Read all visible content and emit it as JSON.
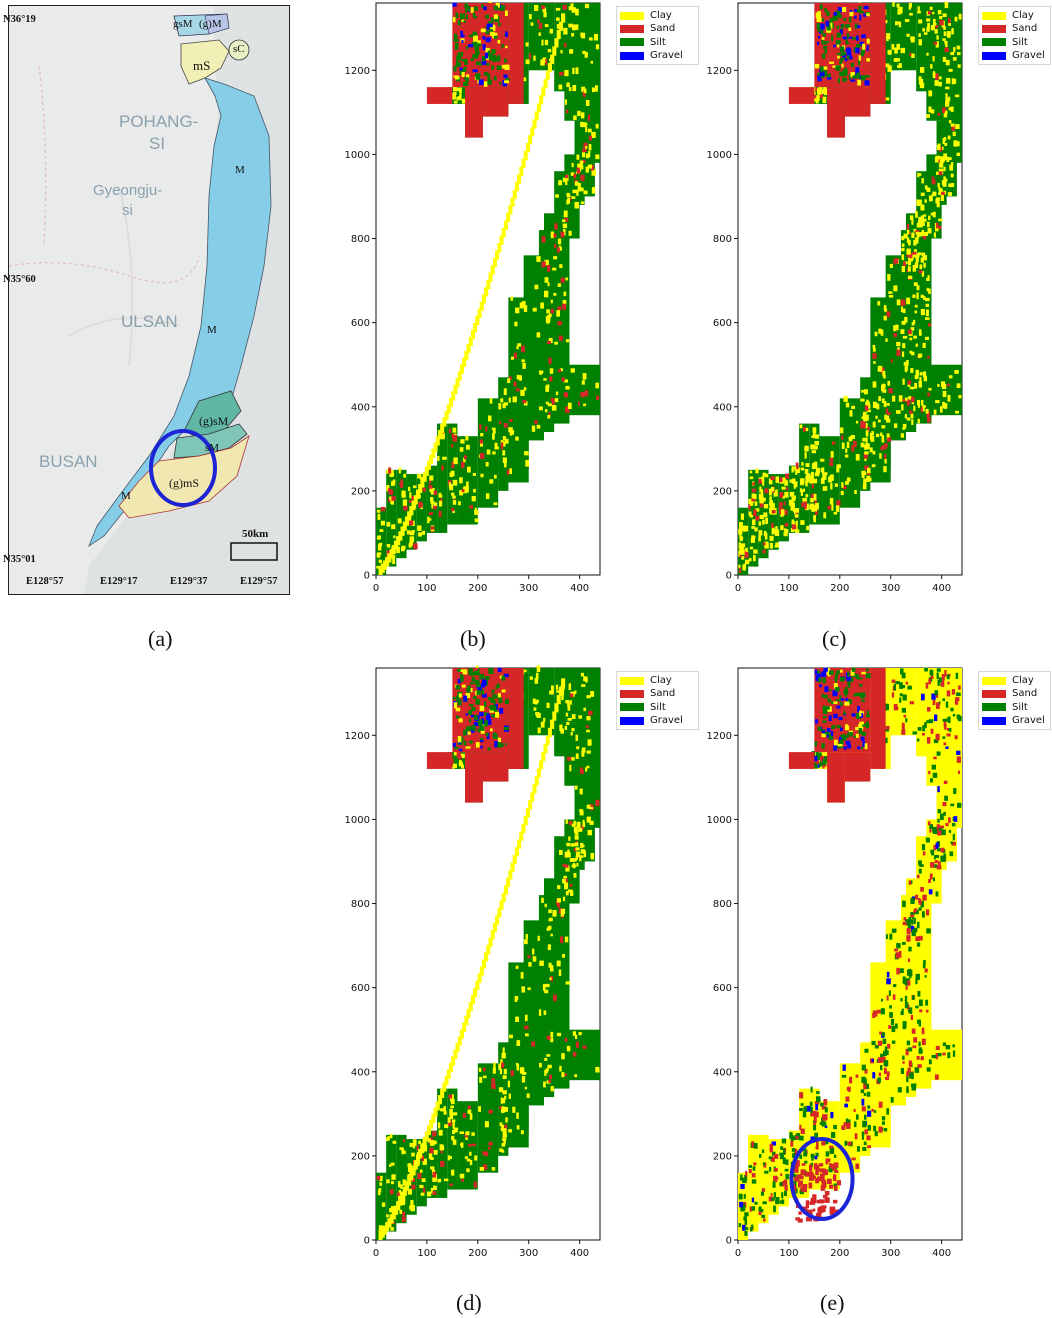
{
  "figure": {
    "captions": [
      "(a)",
      "(b)",
      "(c)",
      "(d)",
      "(e)"
    ]
  },
  "map": {
    "city_labels": [
      "POHANG-",
      "SI",
      "Gyeongju-",
      "si",
      "ULSAN",
      "BUSAN"
    ],
    "sediment_units": [
      "gsM",
      "(g)M",
      "mS",
      "sC",
      "M",
      "M",
      "M",
      "(g)sM",
      "sM",
      "(g)mS"
    ],
    "lat_labels": [
      "N36°19",
      "N35°60",
      "N35°01"
    ],
    "lon_labels": [
      "E128°57",
      "E129°17",
      "E129°37",
      "E129°57"
    ],
    "scale_label": "50km",
    "colors": {
      "sea_mud": "#86cde8",
      "sand": "#f1efb5",
      "gravelly": "#a7d6e5",
      "green_unit": "#5fb7a4",
      "land": "#e9ebea",
      "circle": "#1d24d6"
    }
  },
  "legend": {
    "items": [
      {
        "label": "Clay",
        "color": "#ffff00"
      },
      {
        "label": "Sand",
        "color": "#d62728"
      },
      {
        "label": "Silt",
        "color": "#008000"
      },
      {
        "label": "Gravel",
        "color": "#0000ff"
      }
    ]
  },
  "chart_data": [
    {
      "panel": "(b)",
      "type": "heatmap",
      "xlim": [
        0,
        440
      ],
      "ylim": [
        0,
        1360
      ],
      "xticks": [
        0,
        100,
        200,
        300,
        400
      ],
      "yticks": [
        0,
        200,
        400,
        600,
        800,
        1000,
        1200
      ],
      "series": [
        "Clay",
        "Sand",
        "Silt",
        "Gravel"
      ],
      "dominant_class": "Silt",
      "highlight_circle": false
    },
    {
      "panel": "(c)",
      "type": "heatmap",
      "xlim": [
        0,
        440
      ],
      "ylim": [
        0,
        1360
      ],
      "xticks": [
        0,
        100,
        200,
        300,
        400
      ],
      "yticks": [
        0,
        200,
        400,
        600,
        800,
        1000,
        1200
      ],
      "series": [
        "Clay",
        "Sand",
        "Silt",
        "Gravel"
      ],
      "dominant_class": "Silt",
      "highlight_circle": false
    },
    {
      "panel": "(d)",
      "type": "heatmap",
      "xlim": [
        0,
        440
      ],
      "ylim": [
        0,
        1360
      ],
      "xticks": [
        0,
        100,
        200,
        300,
        400
      ],
      "yticks": [
        0,
        200,
        400,
        600,
        800,
        1000,
        1200
      ],
      "series": [
        "Clay",
        "Sand",
        "Silt",
        "Gravel"
      ],
      "dominant_class": "Silt",
      "highlight_circle": false
    },
    {
      "panel": "(e)",
      "type": "heatmap",
      "xlim": [
        0,
        440
      ],
      "ylim": [
        0,
        1360
      ],
      "xticks": [
        0,
        100,
        200,
        300,
        400
      ],
      "yticks": [
        0,
        200,
        400,
        600,
        800,
        1000,
        1200
      ],
      "series": [
        "Clay",
        "Sand",
        "Silt",
        "Gravel"
      ],
      "dominant_class": "Clay",
      "highlight_circle": true
    }
  ]
}
